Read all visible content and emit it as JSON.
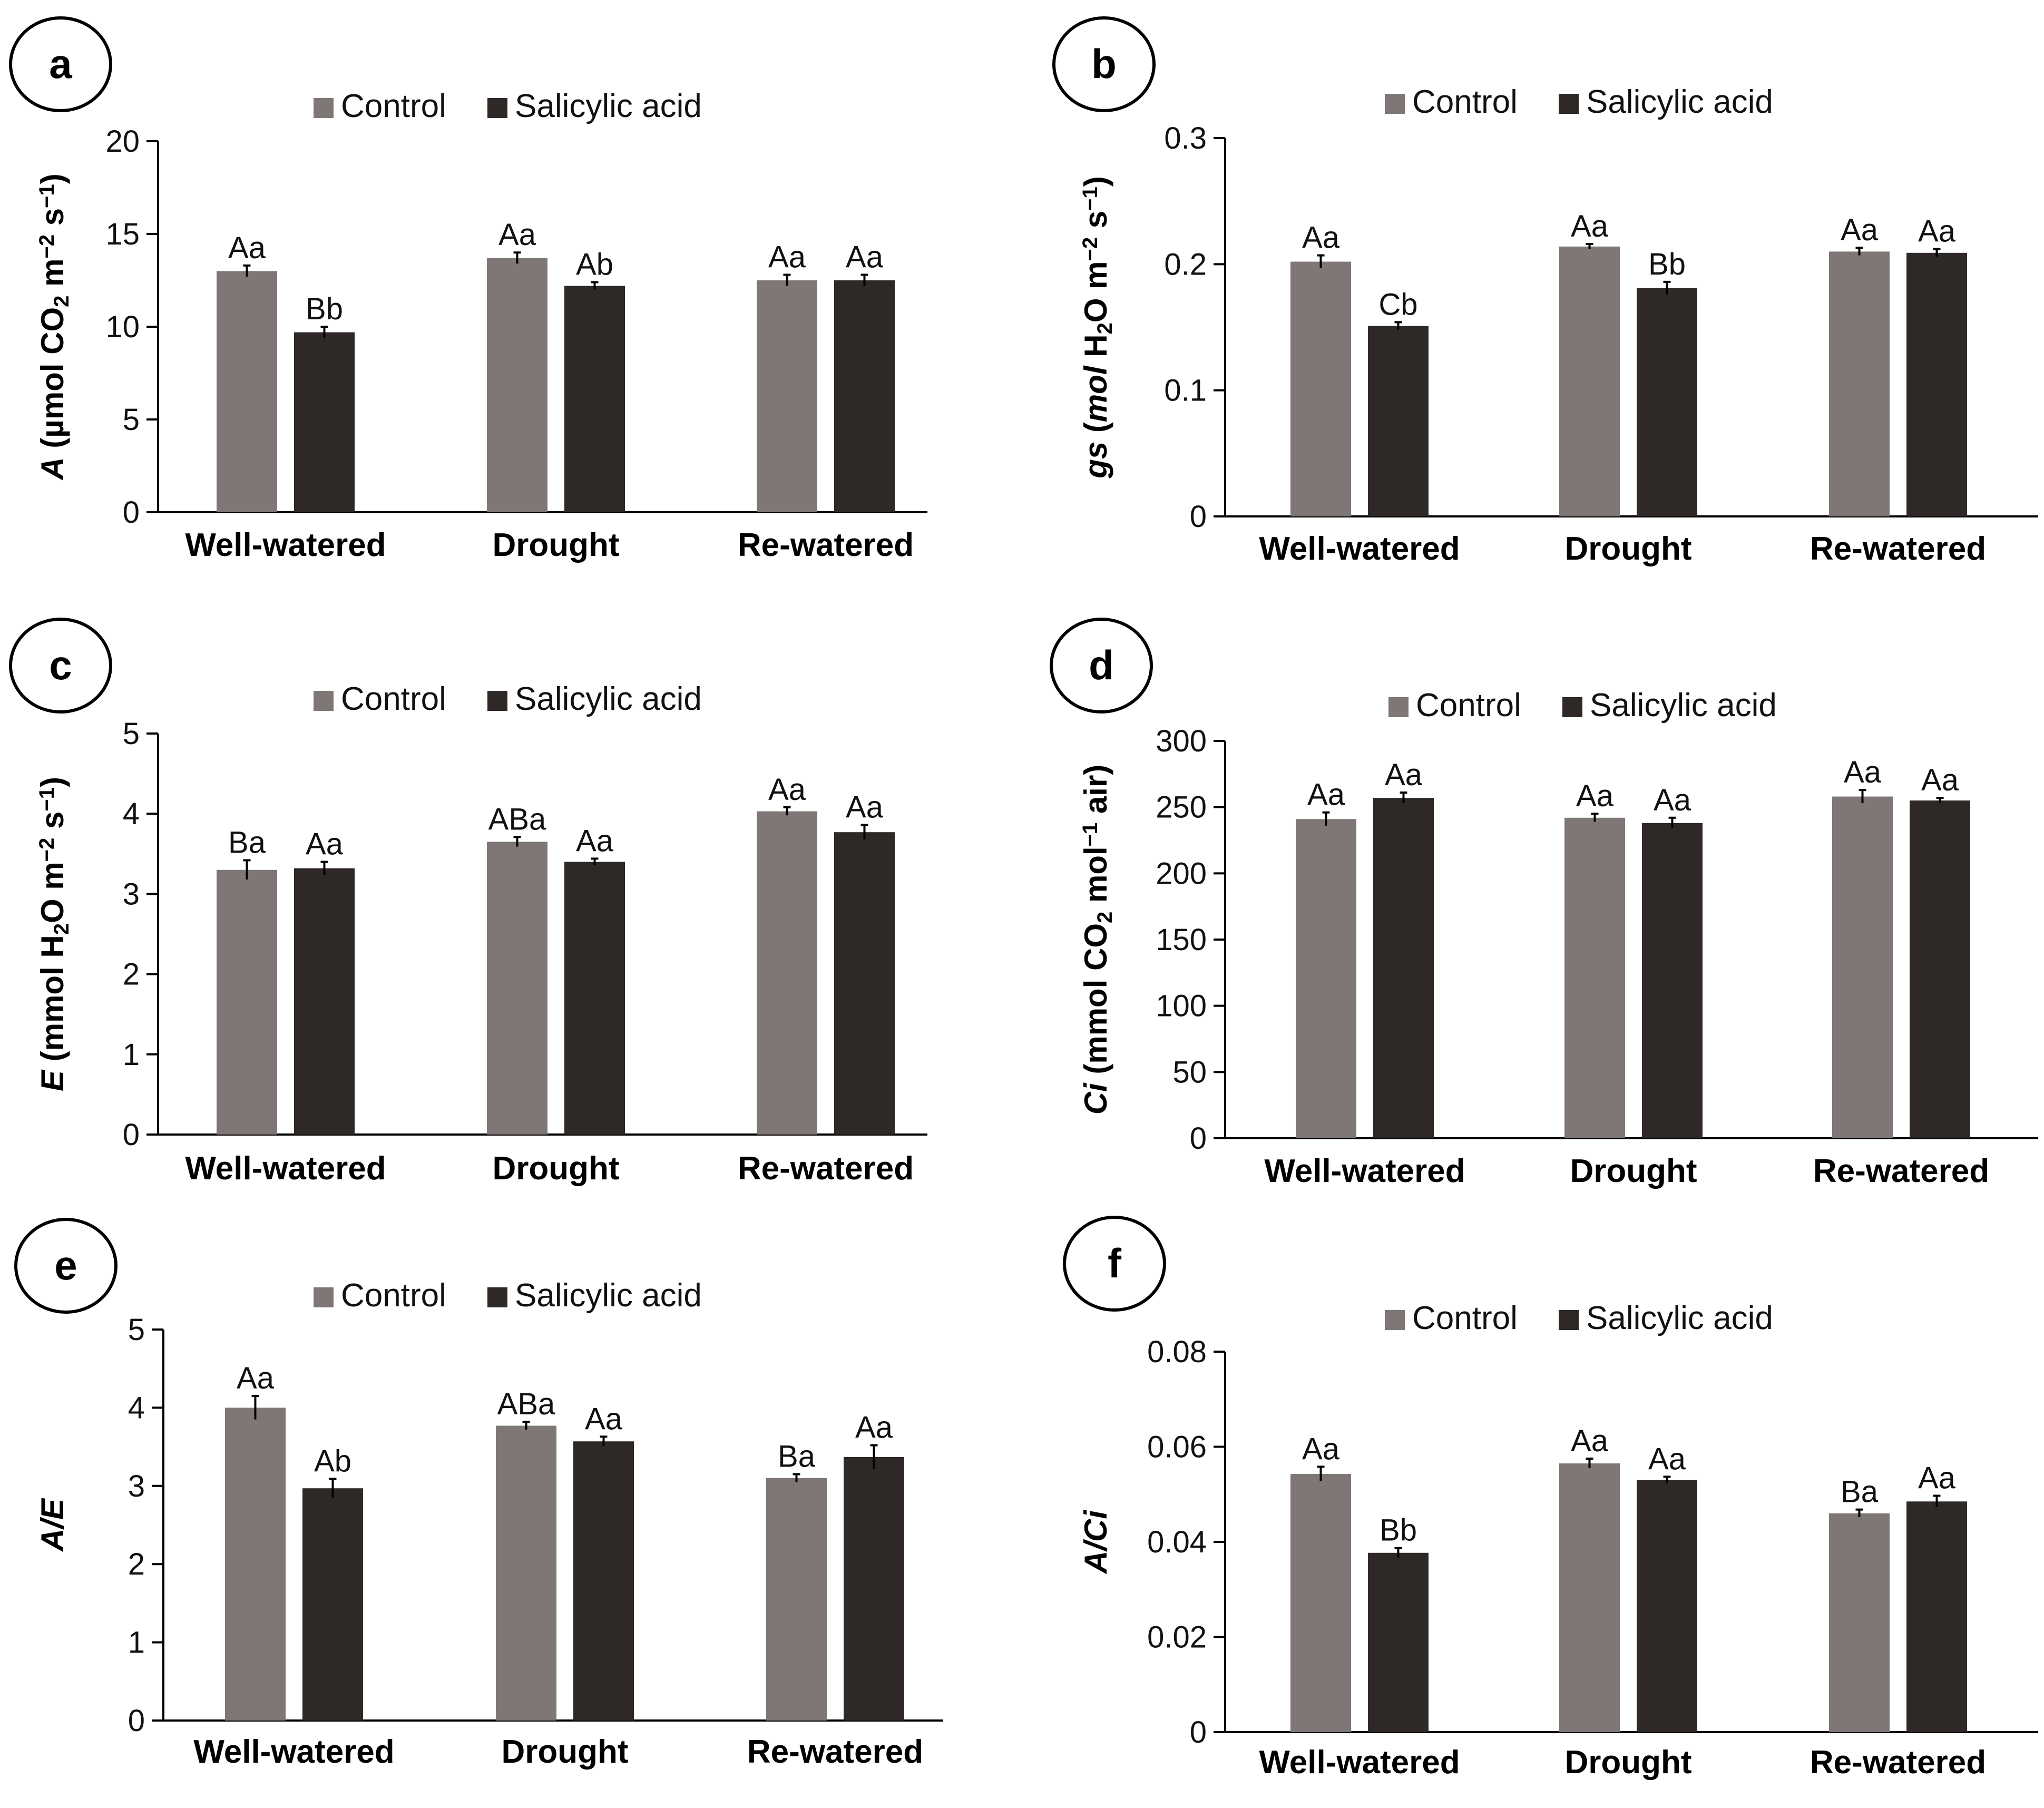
{
  "colors": {
    "control": "#7e7775",
    "salicylic": "#2e2926",
    "axis": "#000000",
    "text": "#111111"
  },
  "legend": {
    "control": "Control",
    "salicylic": "Salicylic acid"
  },
  "chart_data": [
    {
      "panel": "a",
      "type": "bar",
      "categories": [
        "Well-watered",
        "Drought",
        "Re-watered"
      ],
      "ylabel_main": "A",
      "ylabel_unit": "(µmol CO",
      "ylabel_sub1": "2",
      "ylabel_unit2": " m",
      "ylabel_sup1": "−2",
      "ylabel_unit3": " s",
      "ylabel_sup2": "−1",
      "ylabel_unit4": ")",
      "ylim": [
        0,
        20
      ],
      "yticks": [
        0,
        5,
        10,
        15,
        20
      ],
      "tick_labels": [
        "0",
        "5",
        "10",
        "15",
        "20"
      ],
      "series": [
        {
          "name": "Control",
          "values": [
            13.0,
            13.7,
            12.5
          ],
          "errors": [
            0.3,
            0.3,
            0.3
          ],
          "letters": [
            "Aa",
            "Aa",
            "Aa"
          ]
        },
        {
          "name": "Salicylic acid",
          "values": [
            9.7,
            12.2,
            12.5
          ],
          "errors": [
            0.3,
            0.2,
            0.3
          ],
          "letters": [
            "Bb",
            "Ab",
            "Aa"
          ]
        }
      ]
    },
    {
      "panel": "b",
      "type": "bar",
      "categories": [
        "Well-watered",
        "Drought",
        "Re-watered"
      ],
      "ylabel_main": "gs",
      "ylabel_unit": " (",
      "ylabel_unit_it": "mol",
      "ylabel_unit2": " H",
      "ylabel_sub1": "2",
      "ylabel_unit3": "O m",
      "ylabel_sup1": "−2",
      "ylabel_unit4": " s",
      "ylabel_sup2": "−1",
      "ylabel_unit5": ")",
      "ylim": [
        0,
        0.3
      ],
      "yticks": [
        0,
        0.1,
        0.2,
        0.3
      ],
      "tick_labels": [
        "0",
        "0.1",
        "0.2",
        "0.3"
      ],
      "series": [
        {
          "name": "Control",
          "values": [
            0.202,
            0.214,
            0.21
          ],
          "errors": [
            0.005,
            0.002,
            0.003
          ],
          "letters": [
            "Aa",
            "Aa",
            "Aa"
          ]
        },
        {
          "name": "Salicylic acid",
          "values": [
            0.151,
            0.181,
            0.209
          ],
          "errors": [
            0.003,
            0.005,
            0.003
          ],
          "letters": [
            "Cb",
            "Bb",
            "Aa"
          ]
        }
      ]
    },
    {
      "panel": "c",
      "type": "bar",
      "categories": [
        "Well-watered",
        "Drought",
        "Re-watered"
      ],
      "ylabel_main": "E",
      "ylabel_unit": " (mmol H",
      "ylabel_sub1": "2",
      "ylabel_unit2": "O m",
      "ylabel_sup1": "−2",
      "ylabel_unit3": " s",
      "ylabel_sup2": "−1",
      "ylabel_unit4": ")",
      "ylim": [
        0,
        5
      ],
      "yticks": [
        0,
        1,
        2,
        3,
        4,
        5
      ],
      "tick_labels": [
        "0",
        "1",
        "2",
        "3",
        "4",
        "5"
      ],
      "series": [
        {
          "name": "Control",
          "values": [
            3.3,
            3.65,
            4.03
          ],
          "errors": [
            0.12,
            0.06,
            0.05
          ],
          "letters": [
            "Ba",
            "ABa",
            "Aa"
          ]
        },
        {
          "name": "Salicylic acid",
          "values": [
            3.32,
            3.4,
            3.77
          ],
          "errors": [
            0.08,
            0.04,
            0.09
          ],
          "letters": [
            "Aa",
            "Aa",
            "Aa"
          ]
        }
      ]
    },
    {
      "panel": "d",
      "type": "bar",
      "categories": [
        "Well-watered",
        "Drought",
        "Re-watered"
      ],
      "ylabel_main": "Ci",
      "ylabel_unit": " (mmol CO",
      "ylabel_sub1": "2",
      "ylabel_unit2": " mol",
      "ylabel_sup1": "−1",
      "ylabel_unit3": " air)",
      "ylim": [
        0,
        300
      ],
      "yticks": [
        0,
        50,
        100,
        150,
        200,
        250,
        300
      ],
      "tick_labels": [
        "0",
        "50",
        "100",
        "150",
        "200",
        "250",
        "300"
      ],
      "series": [
        {
          "name": "Control",
          "values": [
            241,
            242,
            258
          ],
          "errors": [
            5,
            3,
            5
          ],
          "letters": [
            "Aa",
            "Aa",
            "Aa"
          ]
        },
        {
          "name": "Salicylic acid",
          "values": [
            257,
            238,
            255
          ],
          "errors": [
            4,
            4,
            2
          ],
          "letters": [
            "Aa",
            "Aa",
            "Aa"
          ]
        }
      ]
    },
    {
      "panel": "e",
      "type": "bar",
      "categories": [
        "Well-watered",
        "Drought",
        "Re-watered"
      ],
      "ylabel_main": "A/E",
      "ylim": [
        0,
        5
      ],
      "yticks": [
        0,
        1,
        2,
        3,
        4,
        5
      ],
      "tick_labels": [
        "0",
        "1",
        "2",
        "3",
        "4",
        "5"
      ],
      "series": [
        {
          "name": "Control",
          "values": [
            4.0,
            3.77,
            3.1
          ],
          "errors": [
            0.15,
            0.05,
            0.05
          ],
          "letters": [
            "Aa",
            "ABa",
            "Ba"
          ]
        },
        {
          "name": "Salicylic acid",
          "values": [
            2.97,
            3.57,
            3.37
          ],
          "errors": [
            0.12,
            0.06,
            0.15
          ],
          "letters": [
            "Ab",
            "Aa",
            "Aa"
          ]
        }
      ]
    },
    {
      "panel": "f",
      "type": "bar",
      "categories": [
        "Well-watered",
        "Drought",
        "Re-watered"
      ],
      "ylabel_main": "A/Ci",
      "ylim": [
        0,
        0.08
      ],
      "yticks": [
        0,
        0.02,
        0.04,
        0.06,
        0.08
      ],
      "tick_labels": [
        "0",
        "0.02",
        "0.04",
        "0.06",
        "0.08"
      ],
      "series": [
        {
          "name": "Control",
          "values": [
            0.0543,
            0.0565,
            0.046
          ],
          "errors": [
            0.0015,
            0.001,
            0.0008
          ],
          "letters": [
            "Aa",
            "Aa",
            "Ba"
          ]
        },
        {
          "name": "Salicylic acid",
          "values": [
            0.0377,
            0.053,
            0.0485
          ],
          "errors": [
            0.001,
            0.0007,
            0.0012
          ],
          "letters": [
            "Bb",
            "Aa",
            "Aa"
          ]
        }
      ]
    }
  ]
}
